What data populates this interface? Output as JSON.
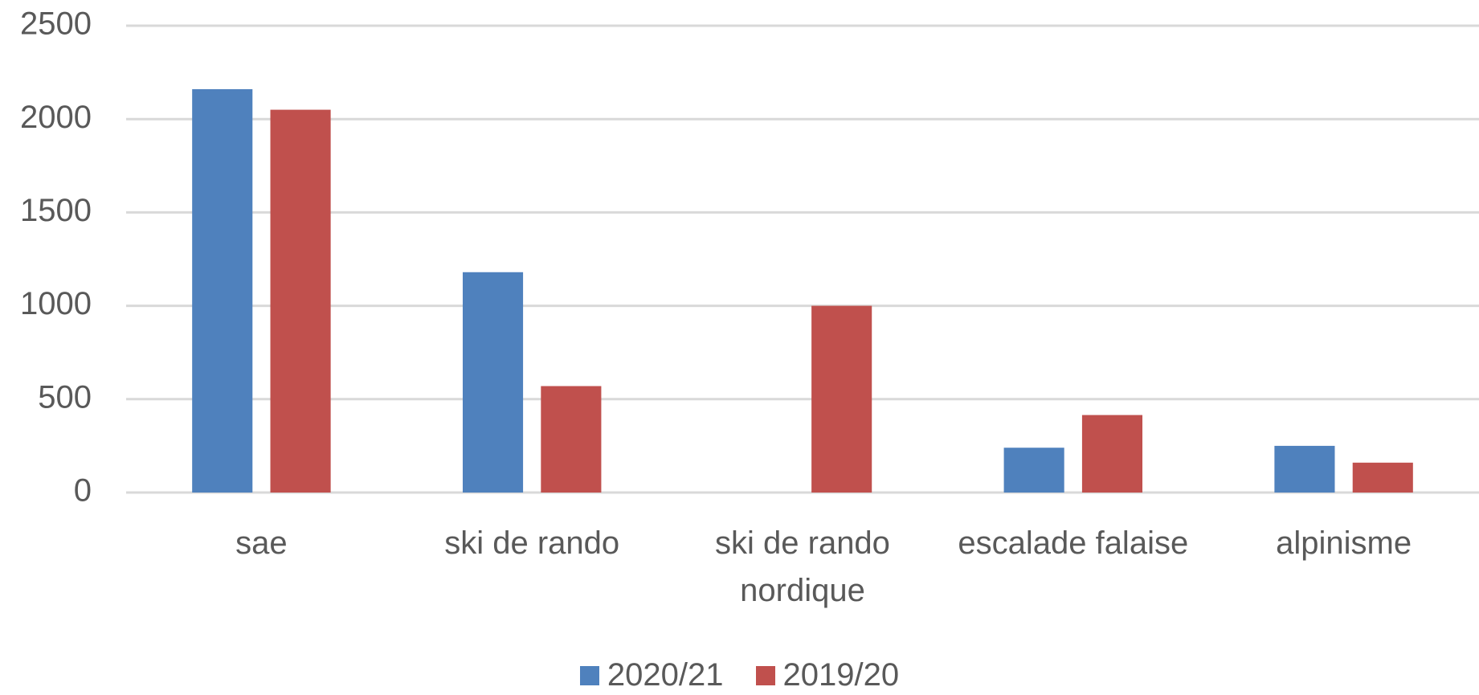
{
  "chart_data": {
    "type": "bar",
    "categories": [
      "sae",
      "ski de rando",
      "ski de rando nordique",
      "escalade falaise",
      "alpinisme"
    ],
    "series": [
      {
        "name": "2020/21",
        "color": "#4f81bd",
        "values": [
          2160,
          1180,
          0,
          240,
          250
        ]
      },
      {
        "name": "2019/20",
        "color": "#c0504d",
        "values": [
          2050,
          570,
          1000,
          415,
          160
        ]
      }
    ],
    "ylim": [
      0,
      2500
    ],
    "yticks": [
      0,
      500,
      1000,
      1500,
      2000,
      2500
    ],
    "grid": true,
    "legend": "bottom"
  }
}
